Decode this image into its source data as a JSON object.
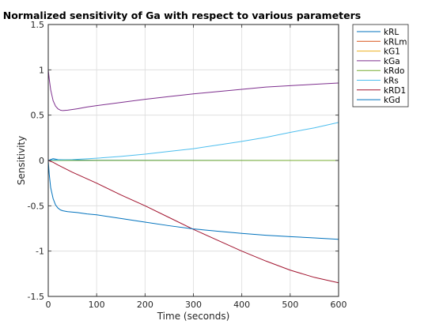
{
  "chart_data": {
    "type": "line",
    "title": "Normalized sensitivity of Ga with respect to various parameters",
    "xlabel": "Time (seconds)",
    "ylabel": "Sensitivity",
    "xlim": [
      0,
      600
    ],
    "ylim": [
      -1.5,
      1.5
    ],
    "xticks": [
      0,
      100,
      200,
      300,
      400,
      500,
      600
    ],
    "xtick_labels": [
      "0",
      "100",
      "200",
      "300",
      "400",
      "500",
      "600"
    ],
    "yticks": [
      -1.5,
      -1,
      -0.5,
      0,
      0.5,
      1,
      1.5
    ],
    "ytick_labels": [
      "-1.5",
      "-1",
      "-0.5",
      "0",
      "0.5",
      "1",
      "1.5"
    ],
    "grid": true,
    "legend_position": "outside-top-right",
    "series": [
      {
        "name": "kRL",
        "color": "#0072bd",
        "x": [
          0,
          10,
          20,
          40,
          100,
          600
        ],
        "y": [
          0,
          0.02,
          0.01,
          0.005,
          0.002,
          0.0
        ]
      },
      {
        "name": "kRLm",
        "color": "#d95319",
        "x": [
          0,
          600
        ],
        "y": [
          0,
          0
        ]
      },
      {
        "name": "kG1",
        "color": "#edb120",
        "x": [
          0,
          600
        ],
        "y": [
          0,
          0
        ]
      },
      {
        "name": "kGa",
        "color": "#7e2f8e",
        "x": [
          0,
          2,
          5,
          10,
          15,
          20,
          25,
          30,
          40,
          60,
          80,
          100,
          150,
          200,
          250,
          300,
          350,
          400,
          450,
          500,
          550,
          600
        ],
        "y": [
          1.0,
          0.9,
          0.78,
          0.66,
          0.6,
          0.57,
          0.555,
          0.55,
          0.555,
          0.57,
          0.59,
          0.605,
          0.64,
          0.675,
          0.705,
          0.735,
          0.76,
          0.785,
          0.81,
          0.825,
          0.84,
          0.855
        ]
      },
      {
        "name": "kRdo",
        "color": "#77ac30",
        "x": [
          0,
          600
        ],
        "y": [
          0,
          0
        ]
      },
      {
        "name": "kRs",
        "color": "#4dbeee",
        "x": [
          0,
          5,
          10,
          50,
          100,
          150,
          200,
          250,
          300,
          350,
          400,
          450,
          500,
          550,
          600
        ],
        "y": [
          0,
          0.005,
          0.005,
          0.01,
          0.025,
          0.045,
          0.07,
          0.1,
          0.13,
          0.17,
          0.21,
          0.255,
          0.31,
          0.36,
          0.42
        ]
      },
      {
        "name": "kRD1",
        "color": "#a2142f",
        "x": [
          0,
          10,
          20,
          50,
          100,
          150,
          200,
          250,
          300,
          350,
          400,
          450,
          500,
          550,
          600
        ],
        "y": [
          0,
          -0.02,
          -0.05,
          -0.13,
          -0.25,
          -0.38,
          -0.5,
          -0.63,
          -0.76,
          -0.88,
          -1.0,
          -1.11,
          -1.21,
          -1.29,
          -1.35
        ]
      },
      {
        "name": "kGd",
        "color": "#0072bd",
        "x": [
          0,
          2,
          5,
          10,
          15,
          20,
          25,
          30,
          40,
          60,
          80,
          100,
          150,
          200,
          250,
          300,
          350,
          400,
          450,
          500,
          550,
          600
        ],
        "y": [
          0,
          -0.15,
          -0.3,
          -0.42,
          -0.49,
          -0.525,
          -0.545,
          -0.555,
          -0.565,
          -0.575,
          -0.59,
          -0.6,
          -0.64,
          -0.68,
          -0.72,
          -0.755,
          -0.78,
          -0.805,
          -0.825,
          -0.84,
          -0.855,
          -0.87
        ]
      }
    ]
  }
}
